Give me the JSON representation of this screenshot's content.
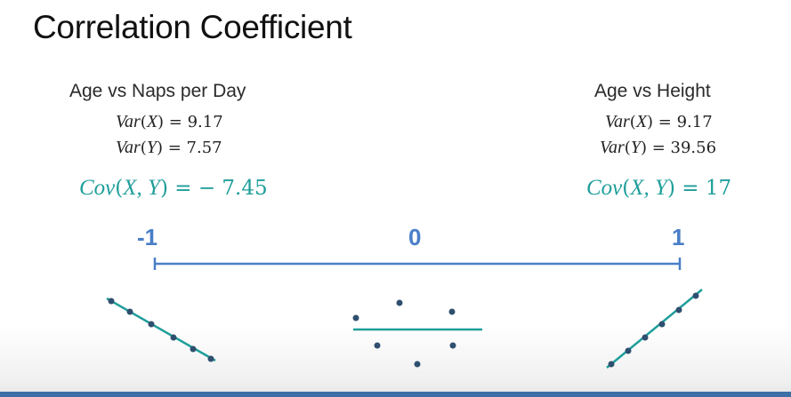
{
  "title": "Correlation Coefficient",
  "left": {
    "heading": "Age vs Naps per Day",
    "var_x": {
      "name": "Var",
      "arg": "X",
      "value": "9.17"
    },
    "var_y": {
      "name": "Var",
      "arg": "Y",
      "value": "7.57"
    },
    "cov": {
      "name": "Cov",
      "arg": "X, Y",
      "value": "− 7.45"
    }
  },
  "right": {
    "heading": "Age vs Height",
    "var_x": {
      "name": "Var",
      "arg": "X",
      "value": "9.17"
    },
    "var_y": {
      "name": "Var",
      "arg": "Y",
      "value": "39.56"
    },
    "cov": {
      "name": "Cov",
      "arg": "X, Y",
      "value": "17"
    }
  },
  "scale": {
    "min_label": "-1",
    "mid_label": "0",
    "max_label": "1"
  },
  "colors": {
    "teal": "#1e9e9a",
    "blue": "#4a7fc8",
    "dot": "#2f4f6f",
    "bottom_bar": "#3d6fa7"
  }
}
